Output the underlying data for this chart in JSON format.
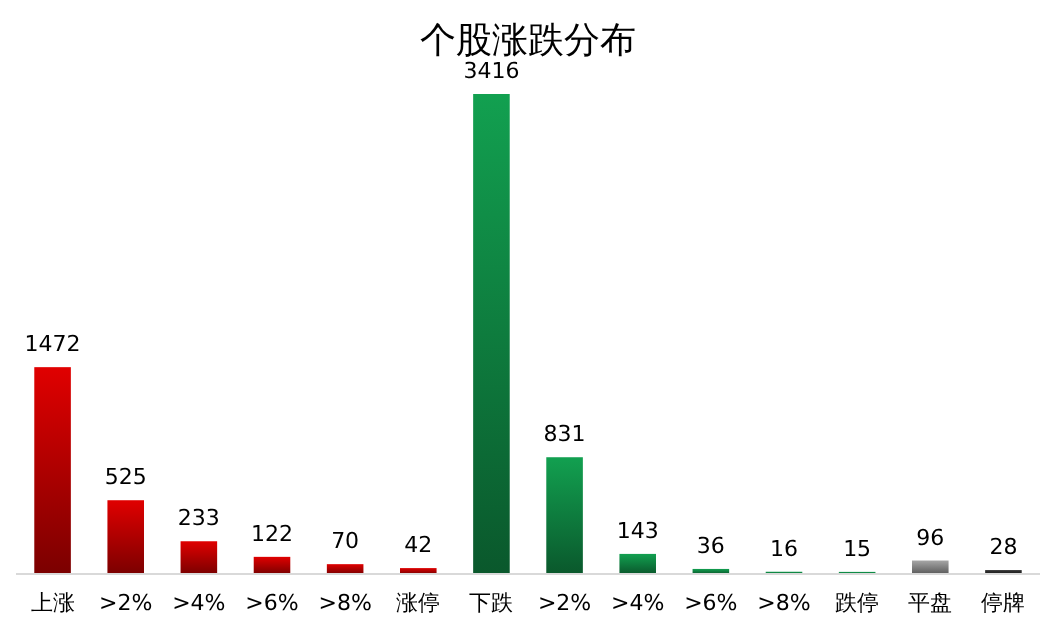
{
  "chart_data": {
    "type": "bar",
    "title": "个股涨跌分布",
    "categories": [
      "上涨",
      ">2%",
      ">4%",
      ">6%",
      ">8%",
      "涨停",
      "下跌",
      ">2%",
      ">4%",
      ">6%",
      ">8%",
      "跌停",
      "平盘",
      "停牌"
    ],
    "values": [
      1472,
      525,
      233,
      122,
      70,
      42,
      3416,
      831,
      143,
      36,
      16,
      15,
      96,
      28
    ],
    "colors": [
      "#e00000",
      "#e00000",
      "#e00000",
      "#e00000",
      "#e00000",
      "#e00000",
      "#12a050",
      "#12a050",
      "#12a050",
      "#12a050",
      "#12a050",
      "#12a050",
      "#a6a6a6",
      "#333333"
    ],
    "tick_labels": "x",
    "data_labels": true
  }
}
